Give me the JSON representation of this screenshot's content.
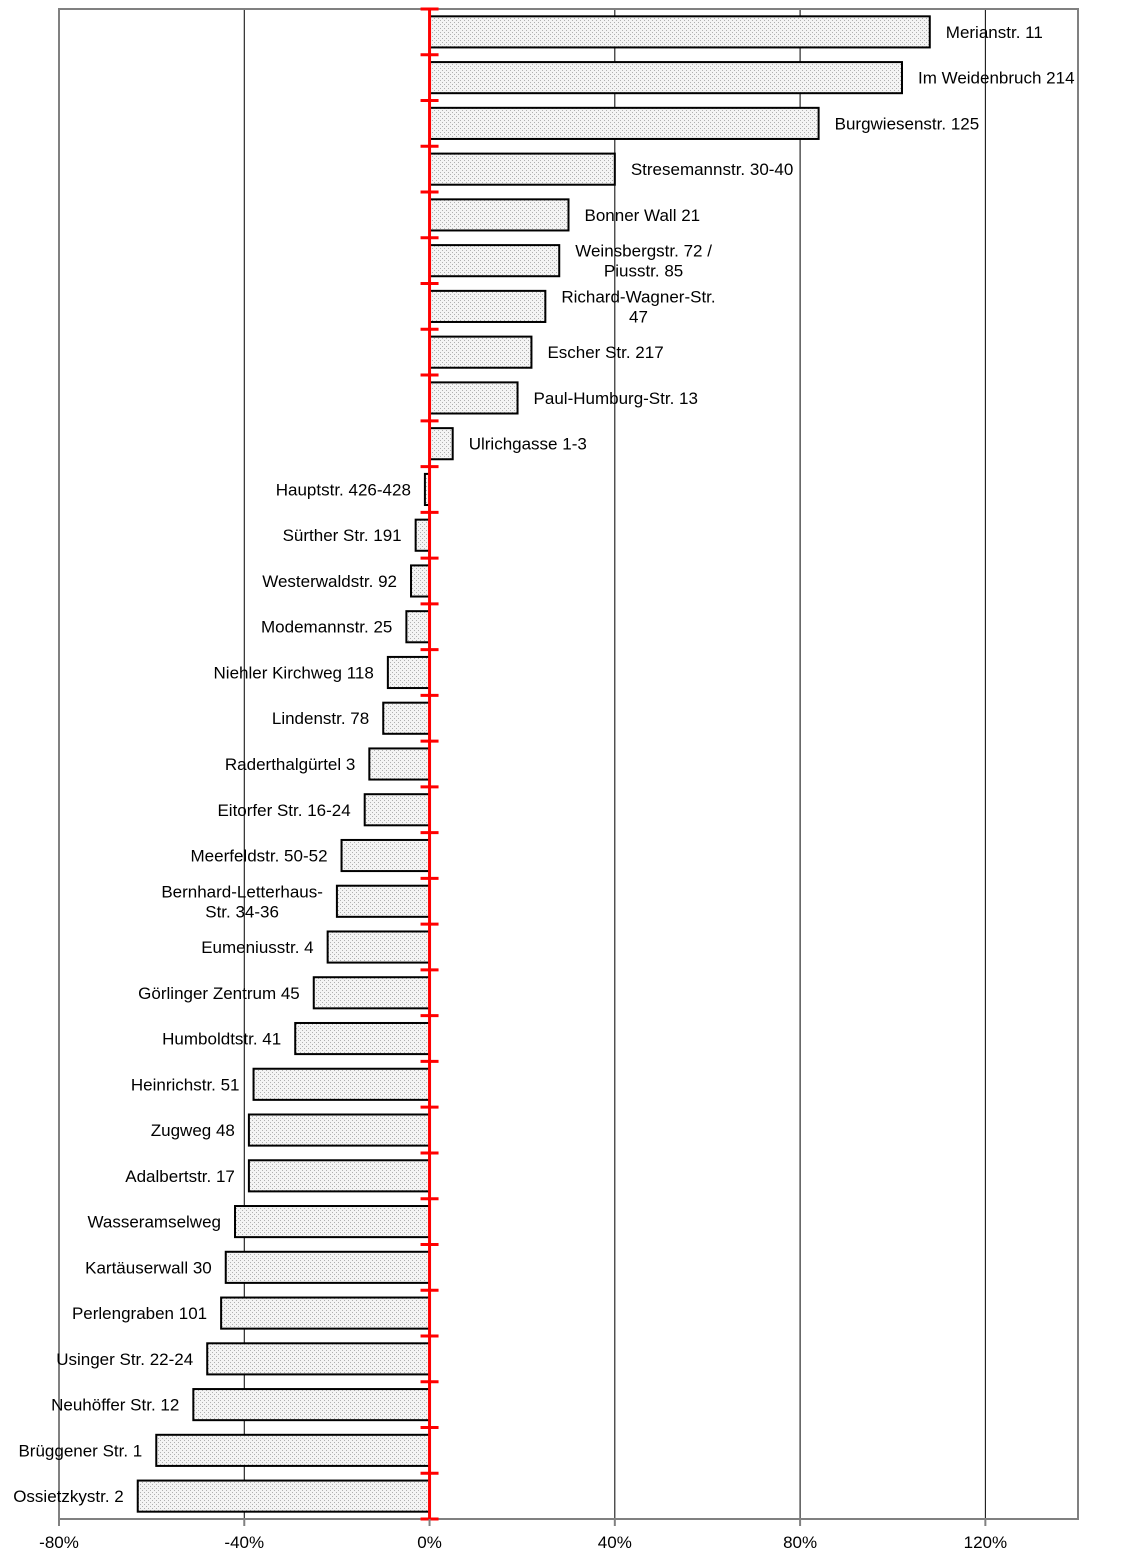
{
  "chart_data": {
    "type": "bar",
    "orientation": "horizontal",
    "title": "",
    "xlabel": "",
    "ylabel": "",
    "xlim": [
      -80,
      140
    ],
    "x_ticks": [
      {
        "value": -80,
        "label": "-80%"
      },
      {
        "value": -40,
        "label": "-40%"
      },
      {
        "value": 0,
        "label": "0%"
      },
      {
        "value": 40,
        "label": "40%"
      },
      {
        "value": 80,
        "label": "80%"
      },
      {
        "value": 120,
        "label": "120%"
      }
    ],
    "grid": "vertical lines at ticks",
    "legend": "none",
    "colors": {
      "bar_fill": "#ececec",
      "bar_edge": "#000000",
      "zero_axis": "#ff0000",
      "grid": "#000000",
      "frame": "#808080"
    },
    "categories": [
      "Merianstr. 11",
      "Im Weidenbruch 214",
      "Burgwiesenstr. 125",
      "Stresemannstr. 30-40",
      "Bonner Wall 21",
      "Weinsbergstr. 72 / Piusstr. 85",
      "Richard-Wagner-Str. 47",
      "Escher Str. 217",
      "Paul-Humburg-Str. 13",
      "Ulrichgasse 1-3",
      "Hauptstr. 426-428",
      "Sürther Str. 191",
      "Westerwaldstr. 92",
      "Modemannstr. 25",
      "Niehler Kirchweg 118",
      "Lindenstr. 78",
      "Raderthalgürtel 3",
      "Eitorfer Str. 16-24",
      "Meerfeldstr. 50-52",
      "Bernhard-Letterhaus-Str. 34-36",
      "Eumeniusstr. 4",
      "Görlinger Zentrum 45",
      "Humboldtstr. 41",
      "Heinrichstr. 51",
      "Zugweg 48",
      "Adalbertstr. 17",
      "Wasseramselweg",
      "Kartäuserwall 30",
      "Perlengraben 101",
      "Usinger Str. 22-24",
      "Neuhöffer Str. 12",
      "Brüggener Str. 1",
      "Ossietzkystr. 2"
    ],
    "label_lines": [
      [
        "Merianstr. 11"
      ],
      [
        "Im Weidenbruch 214"
      ],
      [
        "Burgwiesenstr. 125"
      ],
      [
        "Stresemannstr. 30-40"
      ],
      [
        "Bonner Wall 21"
      ],
      [
        "Weinsbergstr. 72 /",
        "Piusstr. 85"
      ],
      [
        "Richard-Wagner-Str.",
        "47"
      ],
      [
        "Escher Str. 217"
      ],
      [
        "Paul-Humburg-Str. 13"
      ],
      [
        "Ulrichgasse 1-3"
      ],
      [
        "Hauptstr. 426-428"
      ],
      [
        "Sürther Str. 191"
      ],
      [
        "Westerwaldstr. 92"
      ],
      [
        "Modemannstr. 25"
      ],
      [
        "Niehler Kirchweg 118"
      ],
      [
        "Lindenstr. 78"
      ],
      [
        "Raderthalgürtel 3"
      ],
      [
        "Eitorfer Str. 16-24"
      ],
      [
        "Meerfeldstr. 50-52"
      ],
      [
        "Bernhard-Letterhaus-",
        "Str. 34-36"
      ],
      [
        "Eumeniusstr. 4"
      ],
      [
        "Görlinger Zentrum 45"
      ],
      [
        "Humboldtstr. 41"
      ],
      [
        "Heinrichstr. 51"
      ],
      [
        "Zugweg 48"
      ],
      [
        "Adalbertstr. 17"
      ],
      [
        "Wasseramselweg"
      ],
      [
        "Kartäuserwall 30"
      ],
      [
        "Perlengraben 101"
      ],
      [
        "Usinger Str. 22-24"
      ],
      [
        "Neuhöffer Str. 12"
      ],
      [
        "Brüggener Str. 1"
      ],
      [
        "Ossietzkystr. 2"
      ]
    ],
    "values": [
      108,
      102,
      84,
      40,
      30,
      28,
      25,
      22,
      19,
      5,
      -1,
      -3,
      -4,
      -5,
      -9,
      -10,
      -13,
      -14,
      -19,
      -20,
      -22,
      -25,
      -29,
      -38,
      -39,
      -39,
      -42,
      -44,
      -45,
      -48,
      -51,
      -59,
      -63
    ]
  }
}
